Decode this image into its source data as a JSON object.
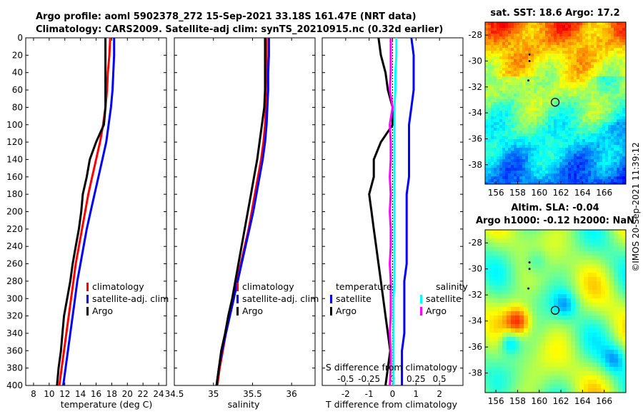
{
  "header": {
    "line1": "Argo profile: aoml 5902378_272 15-Sep-2021 33.18S 161.47E (NRT data)",
    "line2": "Climatology: CARS2009. Satellite-adj clim: synTS_20210915.nc (0.32d earlier)"
  },
  "stamp": "©IMOS 20-Sep-2021 11:39:12",
  "colors": {
    "red": "#ff0000",
    "blue": "#0000ff",
    "black": "#000000",
    "cyan": "#00ffff",
    "magenta": "#ff00ff"
  },
  "chart_data": [
    {
      "id": "temperature",
      "type": "line",
      "xlabel": "temperature (deg C)",
      "xlim": [
        7,
        25
      ],
      "xticks": [
        "8",
        "10",
        "12",
        "14",
        "16",
        "18",
        "20",
        "22",
        "24"
      ],
      "xtick_values": [
        8,
        10,
        12,
        14,
        16,
        18,
        20,
        22,
        24
      ],
      "ylim": [
        0,
        400
      ],
      "yticks": [
        "0",
        "20",
        "40",
        "60",
        "80",
        "100",
        "120",
        "140",
        "160",
        "180",
        "200",
        "220",
        "240",
        "260",
        "280",
        "300",
        "320",
        "340",
        "360",
        "380",
        "400"
      ],
      "depth": [
        0,
        20,
        40,
        60,
        80,
        100,
        120,
        140,
        160,
        180,
        200,
        220,
        240,
        260,
        280,
        300,
        320,
        340,
        360,
        380,
        400
      ],
      "series": [
        {
          "name": "climatology",
          "color": "#ff0000",
          "values": [
            17.8,
            17.7,
            17.5,
            17.4,
            17.2,
            16.9,
            16.5,
            16.0,
            15.5,
            15.0,
            14.6,
            14.2,
            13.8,
            13.4,
            13.1,
            12.8,
            12.5,
            12.2,
            11.9,
            11.6,
            11.3
          ]
        },
        {
          "name": "satellite-adj. clim",
          "color": "#0000ff",
          "values": [
            18.3,
            18.3,
            18.2,
            18.1,
            17.9,
            17.6,
            17.3,
            16.8,
            16.3,
            15.8,
            15.3,
            14.8,
            14.4,
            14.0,
            13.6,
            13.3,
            13.0,
            12.7,
            12.4,
            12.1,
            11.8
          ]
        },
        {
          "name": "Argo",
          "color": "#000000",
          "values": [
            17.2,
            17.2,
            17.2,
            17.2,
            17.2,
            17.0,
            16.0,
            15.2,
            14.8,
            14.3,
            14.1,
            13.8,
            13.4,
            13.0,
            12.7,
            12.3,
            11.9,
            11.7,
            11.5,
            11.2,
            11.0
          ]
        }
      ],
      "legend": [
        "climatology",
        "satellite-adj. clim",
        "Argo"
      ]
    },
    {
      "id": "salinity",
      "type": "line",
      "xlabel": "salinity",
      "xlim": [
        34.5,
        36.3
      ],
      "xticks": [
        "34.5",
        "35",
        "35.5",
        "36"
      ],
      "xtick_values": [
        34.5,
        35,
        35.5,
        36
      ],
      "ylim": [
        0,
        400
      ],
      "depth": [
        0,
        20,
        40,
        60,
        80,
        100,
        120,
        140,
        160,
        180,
        200,
        220,
        240,
        260,
        280,
        300,
        320,
        340,
        360,
        380,
        400
      ],
      "series": [
        {
          "name": "climatology",
          "color": "#ff0000",
          "values": [
            35.68,
            35.68,
            35.68,
            35.67,
            35.67,
            35.66,
            35.64,
            35.61,
            35.57,
            35.53,
            35.49,
            35.45,
            35.4,
            35.35,
            35.3,
            35.26,
            35.21,
            35.16,
            35.12,
            35.08,
            35.05
          ]
        },
        {
          "name": "satellite-adj. clim",
          "color": "#0000ff",
          "values": [
            35.71,
            35.71,
            35.7,
            35.7,
            35.69,
            35.68,
            35.66,
            35.63,
            35.59,
            35.55,
            35.51,
            35.46,
            35.41,
            35.36,
            35.31,
            35.26,
            35.21,
            35.16,
            35.11,
            35.07,
            35.04
          ]
        },
        {
          "name": "Argo",
          "color": "#000000",
          "values": [
            35.66,
            35.66,
            35.66,
            35.66,
            35.65,
            35.62,
            35.59,
            35.56,
            35.52,
            35.48,
            35.44,
            35.4,
            35.36,
            35.32,
            35.28,
            35.24,
            35.19,
            35.15,
            35.1,
            35.07,
            35.04
          ]
        }
      ],
      "legend": [
        "climatology",
        "satellite-adj. clim",
        "Argo"
      ]
    },
    {
      "id": "difference",
      "type": "line",
      "xlabel": "T difference from climatology",
      "top_xlabel": "S difference from climatology",
      "xlim": [
        -3,
        3
      ],
      "xticks": [
        "-2",
        "-1",
        "0",
        "1",
        "2"
      ],
      "xtick_values": [
        -2,
        -1,
        0,
        1,
        2
      ],
      "top_xticks": [
        "-0.5",
        "-0.25",
        "0",
        "0.25",
        "0.5"
      ],
      "ylim": [
        0,
        400
      ],
      "depth": [
        0,
        20,
        40,
        60,
        80,
        100,
        120,
        140,
        160,
        180,
        200,
        220,
        240,
        260,
        280,
        300,
        320,
        340,
        360,
        380,
        400
      ],
      "series": [
        {
          "name": "temperature satellite",
          "color": "#0000ff",
          "values": [
            0.8,
            0.9,
            0.9,
            0.9,
            0.8,
            0.7,
            0.7,
            0.7,
            0.7,
            0.6,
            0.6,
            0.6,
            0.6,
            0.6,
            0.5,
            0.5,
            0.5,
            0.5,
            0.4,
            0.4,
            0.4
          ]
        },
        {
          "name": "temperature Argo",
          "color": "#000000",
          "values": [
            -0.6,
            -0.5,
            -0.3,
            -0.2,
            0.0,
            0.0,
            -0.5,
            -0.8,
            -0.8,
            -1.0,
            -0.9,
            -0.8,
            -0.7,
            -0.6,
            -0.5,
            -0.4,
            -0.3,
            -0.2,
            -0.1,
            -0.2,
            -0.3
          ]
        },
        {
          "name": "salinity satellite",
          "color": "#00ffff",
          "values": [
            0.04,
            0.04,
            0.03,
            0.03,
            0.02,
            0.02,
            0.02,
            0.02,
            0.02,
            0.02,
            0.02,
            0.02,
            0.02,
            0.02,
            0.02,
            0.01,
            0.01,
            0.01,
            0.01,
            0.01,
            0.01
          ]
        },
        {
          "name": "salinity Argo",
          "color": "#ff00ff",
          "values": [
            -0.02,
            -0.02,
            -0.02,
            -0.03,
            0.0,
            -0.03,
            -0.02,
            -0.02,
            -0.03,
            -0.02,
            -0.03,
            -0.02,
            -0.02,
            -0.03,
            -0.02,
            -0.02,
            -0.02,
            -0.03,
            -0.02,
            -0.02,
            -0.03
          ]
        }
      ],
      "legend": {
        "temperature_header": "temperature",
        "salinity_header": "salinity",
        "items": [
          "satellite",
          "Argo",
          "satellite",
          "Argo"
        ]
      }
    },
    {
      "id": "sst-map",
      "type": "heatmap",
      "title": "sat. SST: 18.6 Argo: 17.2",
      "xlim": [
        155,
        168
      ],
      "ylim": [
        -39.5,
        -27
      ],
      "xticks": [
        "156",
        "158",
        "160",
        "162",
        "164",
        "166"
      ],
      "xtick_values": [
        156,
        158,
        160,
        162,
        164,
        166
      ],
      "yticks": [
        "-28",
        "-30",
        "-32",
        "-34",
        "-36",
        "-38"
      ],
      "ytick_values": [
        -28,
        -30,
        -32,
        -34,
        -36,
        -38
      ],
      "marker": {
        "lon": 161.47,
        "lat": -33.18
      },
      "track": [
        [
          159.1,
          -29.5
        ],
        [
          159.1,
          -30.0
        ],
        [
          159.0,
          -31.5
        ]
      ]
    },
    {
      "id": "sla-map",
      "type": "heatmap",
      "title_line1": "Altim. SLA: -0.04",
      "title_line2": "Argo h1000: -0.12 h2000: NaN",
      "xlim": [
        155,
        168
      ],
      "ylim": [
        -39.5,
        -27
      ],
      "xticks": [
        "156",
        "158",
        "160",
        "162",
        "164",
        "166"
      ],
      "xtick_values": [
        156,
        158,
        160,
        162,
        164,
        166
      ],
      "yticks": [
        "-28",
        "-30",
        "-32",
        "-34",
        "-36",
        "-38"
      ],
      "ytick_values": [
        -28,
        -30,
        -32,
        -34,
        -36,
        -38
      ],
      "marker": {
        "lon": 161.47,
        "lat": -33.18
      },
      "track": [
        [
          159.1,
          -29.5
        ],
        [
          159.1,
          -30.0
        ],
        [
          159.0,
          -31.5
        ]
      ]
    }
  ]
}
